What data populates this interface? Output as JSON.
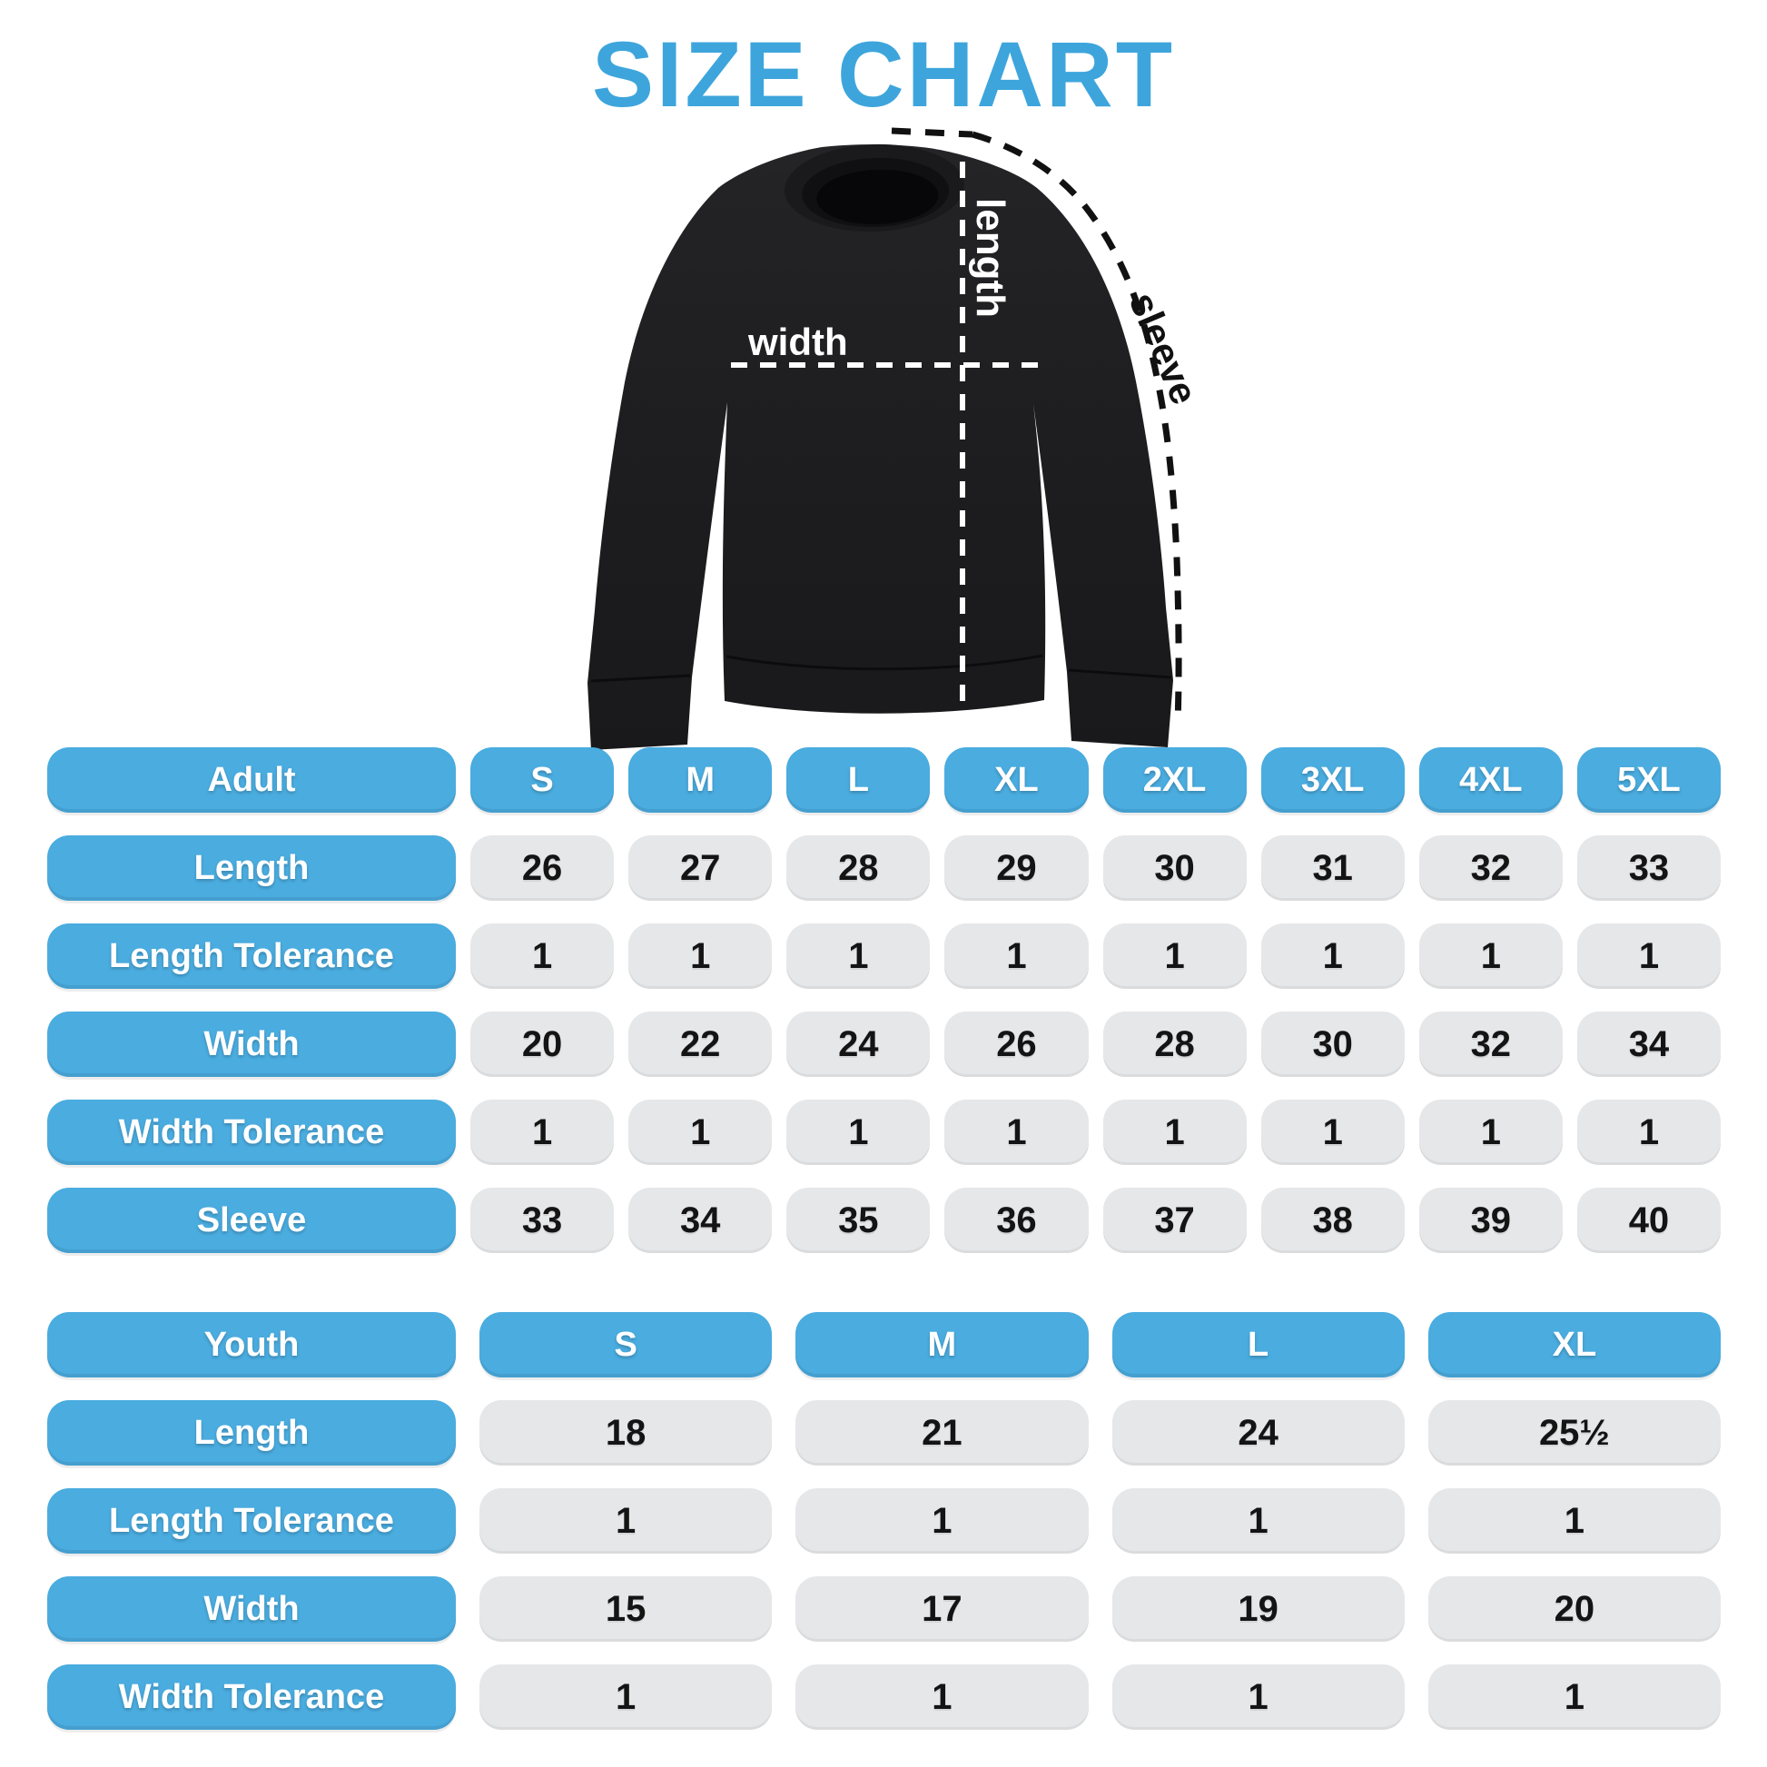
{
  "title": "SIZE CHART",
  "colors": {
    "accent_blue": "#4AACDF",
    "title_blue": "#3DA5DC",
    "cell_gray": "#E6E7E9",
    "shirt_black": "#1D1D1F"
  },
  "diagram": {
    "length_label": "length",
    "width_label": "width",
    "sleeve_label": "sleeve"
  },
  "chart_data": [
    {
      "type": "table",
      "title": "Adult",
      "columns": [
        "Adult",
        "S",
        "M",
        "L",
        "XL",
        "2XL",
        "3XL",
        "4XL",
        "5XL"
      ],
      "rows": [
        [
          "Length",
          26,
          27,
          28,
          29,
          30,
          31,
          32,
          33
        ],
        [
          "Length Tolerance",
          1,
          1,
          1,
          1,
          1,
          1,
          1,
          1
        ],
        [
          "Width",
          20,
          22,
          24,
          26,
          28,
          30,
          32,
          34
        ],
        [
          "Width Tolerance",
          1,
          1,
          1,
          1,
          1,
          1,
          1,
          1
        ],
        [
          "Sleeve",
          33,
          34,
          35,
          36,
          37,
          38,
          39,
          40
        ]
      ]
    },
    {
      "type": "table",
      "title": "Youth",
      "columns": [
        "Youth",
        "S",
        "M",
        "L",
        "XL"
      ],
      "rows": [
        [
          "Length",
          18,
          21,
          24,
          "25½"
        ],
        [
          "Length Tolerance",
          1,
          1,
          1,
          1
        ],
        [
          "Width",
          15,
          17,
          19,
          20
        ],
        [
          "Width Tolerance",
          1,
          1,
          1,
          1
        ]
      ]
    }
  ]
}
